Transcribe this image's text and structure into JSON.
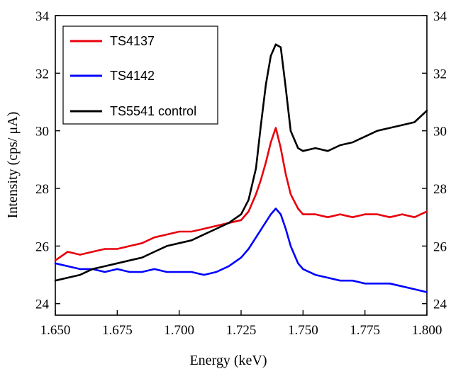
{
  "chart_data": {
    "type": "line",
    "title": "",
    "xlabel": "Energy (keV)",
    "ylabel": "Intensity (cps/ μA)",
    "xlim": [
      1.65,
      1.8
    ],
    "ylim": [
      23.6,
      34
    ],
    "xticks": [
      "1.650",
      "1.675",
      "1.700",
      "1.725",
      "1.750",
      "1.775",
      "1.800"
    ],
    "yticks": [
      "24",
      "26",
      "28",
      "30",
      "32",
      "34"
    ],
    "grid": false,
    "legend_position": "top-left",
    "right_axis_ticks": [
      "24",
      "26",
      "28",
      "30",
      "32",
      "34"
    ],
    "series": [
      {
        "name": "TS4137",
        "color": "#e8000b",
        "x": [
          1.65,
          1.655,
          1.66,
          1.665,
          1.67,
          1.675,
          1.68,
          1.685,
          1.69,
          1.695,
          1.7,
          1.705,
          1.71,
          1.715,
          1.72,
          1.725,
          1.728,
          1.731,
          1.733,
          1.735,
          1.737,
          1.739,
          1.741,
          1.743,
          1.745,
          1.748,
          1.75,
          1.755,
          1.76,
          1.765,
          1.77,
          1.775,
          1.78,
          1.785,
          1.79,
          1.795,
          1.8
        ],
        "y": [
          25.5,
          25.8,
          25.7,
          25.8,
          25.9,
          25.9,
          26.0,
          26.1,
          26.3,
          26.4,
          26.5,
          26.5,
          26.6,
          26.7,
          26.8,
          26.9,
          27.2,
          27.8,
          28.3,
          28.9,
          29.6,
          30.1,
          29.4,
          28.5,
          27.8,
          27.3,
          27.1,
          27.1,
          27.0,
          27.1,
          27.0,
          27.1,
          27.1,
          27.0,
          27.1,
          27.0,
          27.2
        ]
      },
      {
        "name": "TS4142",
        "color": "#0000ff",
        "x": [
          1.65,
          1.655,
          1.66,
          1.665,
          1.67,
          1.675,
          1.68,
          1.685,
          1.69,
          1.695,
          1.7,
          1.705,
          1.71,
          1.715,
          1.72,
          1.725,
          1.728,
          1.731,
          1.734,
          1.737,
          1.739,
          1.741,
          1.743,
          1.745,
          1.748,
          1.75,
          1.755,
          1.76,
          1.765,
          1.77,
          1.775,
          1.78,
          1.785,
          1.79,
          1.795,
          1.8
        ],
        "y": [
          25.4,
          25.3,
          25.2,
          25.2,
          25.1,
          25.2,
          25.1,
          25.1,
          25.2,
          25.1,
          25.1,
          25.1,
          25.0,
          25.1,
          25.3,
          25.6,
          25.9,
          26.3,
          26.7,
          27.1,
          27.3,
          27.1,
          26.6,
          26.0,
          25.4,
          25.2,
          25.0,
          24.9,
          24.8,
          24.8,
          24.7,
          24.7,
          24.7,
          24.6,
          24.5,
          24.4
        ]
      },
      {
        "name": "TS5541 control",
        "color": "#000000",
        "x": [
          1.65,
          1.655,
          1.66,
          1.665,
          1.67,
          1.675,
          1.68,
          1.685,
          1.69,
          1.695,
          1.7,
          1.705,
          1.71,
          1.715,
          1.72,
          1.725,
          1.728,
          1.731,
          1.733,
          1.735,
          1.737,
          1.739,
          1.741,
          1.743,
          1.745,
          1.748,
          1.75,
          1.755,
          1.76,
          1.765,
          1.77,
          1.775,
          1.78,
          1.785,
          1.79,
          1.795,
          1.8
        ],
        "y": [
          24.8,
          24.9,
          25.0,
          25.2,
          25.3,
          25.4,
          25.5,
          25.6,
          25.8,
          26.0,
          26.1,
          26.2,
          26.4,
          26.6,
          26.8,
          27.1,
          27.6,
          28.7,
          30.2,
          31.6,
          32.6,
          33.0,
          32.9,
          31.5,
          30.0,
          29.4,
          29.3,
          29.4,
          29.3,
          29.5,
          29.6,
          29.8,
          30.0,
          30.1,
          30.2,
          30.3,
          30.7
        ]
      }
    ]
  }
}
